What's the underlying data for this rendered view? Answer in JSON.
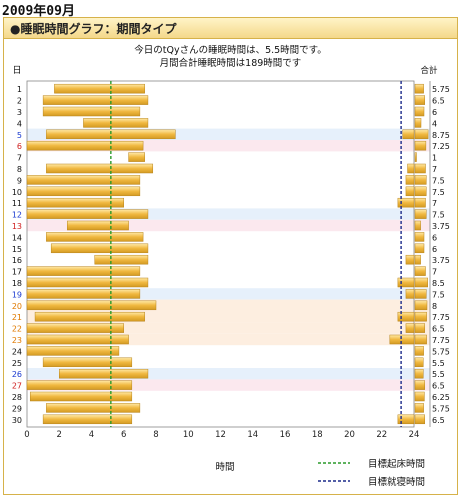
{
  "page": {
    "month_label": "2009年09月",
    "panel_title": "●睡眠時間グラフ：期間タイプ",
    "info_line1": "今日のtQyさんの睡眠時間は、5.5時間です。",
    "info_line2": "月間合計睡眠時間は189時間です",
    "day_axis_label": "日",
    "total_axis_label": "合計",
    "x_axis_label": "時間",
    "legend": [
      {
        "label": "目標起床時間",
        "color": "#2a9a2a",
        "style": "dashed"
      },
      {
        "label": "目標就寝時間",
        "color": "#1a2a8a",
        "style": "dashed"
      }
    ]
  },
  "colors": {
    "bar": "#f0b840",
    "bar_edge": "#b8841c",
    "saturday_row": "#e6f0fb",
    "sunday_row": "#fbe8ee",
    "saturday_text": "#1a3ad0",
    "sunday_text": "#d02020",
    "holiday_text": "#e07a00",
    "holiday_row": "#fdeee0",
    "wake_line": "#2a9a2a",
    "bed_line": "#1a2a8a"
  },
  "chart_data": {
    "type": "bar",
    "orientation": "horizontal-range",
    "xlim": [
      0,
      24
    ],
    "x_ticks": [
      0,
      2,
      4,
      6,
      8,
      10,
      12,
      14,
      16,
      18,
      20,
      22,
      24
    ],
    "target_wake_hour": 5.2,
    "target_bed_hour": 23.2,
    "total_xlim": [
      0,
      10
    ],
    "days": [
      {
        "day": "1",
        "type": "weekday",
        "segments": [
          [
            1.7,
            7.3
          ]
        ],
        "total": "5.75",
        "total_value": 5.75
      },
      {
        "day": "2",
        "type": "weekday",
        "segments": [
          [
            1.0,
            7.5
          ]
        ],
        "total": "6.5",
        "total_value": 6.5
      },
      {
        "day": "3",
        "type": "weekday",
        "segments": [
          [
            1.0,
            7.0
          ]
        ],
        "total": "6",
        "total_value": 6
      },
      {
        "day": "4",
        "type": "weekday",
        "segments": [
          [
            3.5,
            7.5
          ]
        ],
        "total": "4",
        "total_value": 4
      },
      {
        "day": "5",
        "type": "saturday",
        "segments": [
          [
            1.2,
            9.2
          ],
          [
            23.3,
            24.0
          ]
        ],
        "total": "8.75",
        "total_value": 8.75
      },
      {
        "day": "6",
        "type": "sunday",
        "segments": [
          [
            0.0,
            7.2
          ]
        ],
        "total": "7.25",
        "total_value": 7.25
      },
      {
        "day": "7",
        "type": "weekday",
        "segments": [
          [
            6.3,
            7.3
          ]
        ],
        "total": "1",
        "total_value": 1
      },
      {
        "day": "8",
        "type": "weekday",
        "segments": [
          [
            1.2,
            7.8
          ],
          [
            23.6,
            24.0
          ]
        ],
        "total": "7",
        "total_value": 7
      },
      {
        "day": "9",
        "type": "weekday",
        "segments": [
          [
            0.0,
            7.0
          ],
          [
            23.5,
            24.0
          ]
        ],
        "total": "7.5",
        "total_value": 7.5
      },
      {
        "day": "10",
        "type": "weekday",
        "segments": [
          [
            0.0,
            7.0
          ],
          [
            23.5,
            24.0
          ]
        ],
        "total": "7.5",
        "total_value": 7.5
      },
      {
        "day": "11",
        "type": "weekday",
        "segments": [
          [
            0.0,
            6.0
          ],
          [
            23.0,
            24.0
          ]
        ],
        "total": "7",
        "total_value": 7
      },
      {
        "day": "12",
        "type": "saturday",
        "segments": [
          [
            0.0,
            7.5
          ]
        ],
        "total": "7.5",
        "total_value": 7.5
      },
      {
        "day": "13",
        "type": "sunday",
        "segments": [
          [
            2.5,
            6.3
          ]
        ],
        "total": "3.75",
        "total_value": 3.75
      },
      {
        "day": "14",
        "type": "weekday",
        "segments": [
          [
            1.2,
            7.2
          ]
        ],
        "total": "6",
        "total_value": 6
      },
      {
        "day": "15",
        "type": "weekday",
        "segments": [
          [
            1.5,
            7.5
          ]
        ],
        "total": "6",
        "total_value": 6
      },
      {
        "day": "16",
        "type": "weekday",
        "segments": [
          [
            4.2,
            7.5
          ],
          [
            23.5,
            24.0
          ]
        ],
        "total": "3.75",
        "total_value": 3.75
      },
      {
        "day": "17",
        "type": "weekday",
        "segments": [
          [
            0.0,
            7.0
          ]
        ],
        "total": "7",
        "total_value": 7
      },
      {
        "day": "18",
        "type": "weekday",
        "segments": [
          [
            0.0,
            7.5
          ],
          [
            23.0,
            24.0
          ]
        ],
        "total": "8.5",
        "total_value": 8.5
      },
      {
        "day": "19",
        "type": "saturday",
        "segments": [
          [
            0.0,
            7.0
          ],
          [
            23.5,
            24.0
          ]
        ],
        "total": "7.5",
        "total_value": 7.5
      },
      {
        "day": "20",
        "type": "holiday",
        "segments": [
          [
            0.0,
            8.0
          ]
        ],
        "total": "8",
        "total_value": 8
      },
      {
        "day": "21",
        "type": "holiday",
        "segments": [
          [
            0.5,
            7.3
          ],
          [
            23.0,
            24.0
          ]
        ],
        "total": "7.75",
        "total_value": 7.75
      },
      {
        "day": "22",
        "type": "holiday",
        "segments": [
          [
            0.0,
            6.0
          ],
          [
            23.5,
            24.0
          ]
        ],
        "total": "6.5",
        "total_value": 6.5
      },
      {
        "day": "23",
        "type": "holiday",
        "segments": [
          [
            0.0,
            6.3
          ],
          [
            22.5,
            24.0
          ]
        ],
        "total": "7.75",
        "total_value": 7.75
      },
      {
        "day": "24",
        "type": "weekday",
        "segments": [
          [
            0.0,
            5.7
          ]
        ],
        "total": "5.75",
        "total_value": 5.75
      },
      {
        "day": "25",
        "type": "weekday",
        "segments": [
          [
            1.0,
            6.5
          ]
        ],
        "total": "5.5",
        "total_value": 5.5
      },
      {
        "day": "26",
        "type": "saturday",
        "segments": [
          [
            2.0,
            7.5
          ]
        ],
        "total": "5.5",
        "total_value": 5.5
      },
      {
        "day": "27",
        "type": "sunday",
        "segments": [
          [
            0.0,
            6.5
          ]
        ],
        "total": "6.5",
        "total_value": 6.5
      },
      {
        "day": "28",
        "type": "weekday",
        "segments": [
          [
            0.2,
            6.5
          ]
        ],
        "total": "6.25",
        "total_value": 6.25
      },
      {
        "day": "29",
        "type": "weekday",
        "segments": [
          [
            1.2,
            7.0
          ]
        ],
        "total": "5.75",
        "total_value": 5.75
      },
      {
        "day": "30",
        "type": "weekday",
        "segments": [
          [
            1.0,
            6.5
          ],
          [
            23.0,
            24.0
          ]
        ],
        "total": "6.5",
        "total_value": 6.5
      }
    ]
  }
}
